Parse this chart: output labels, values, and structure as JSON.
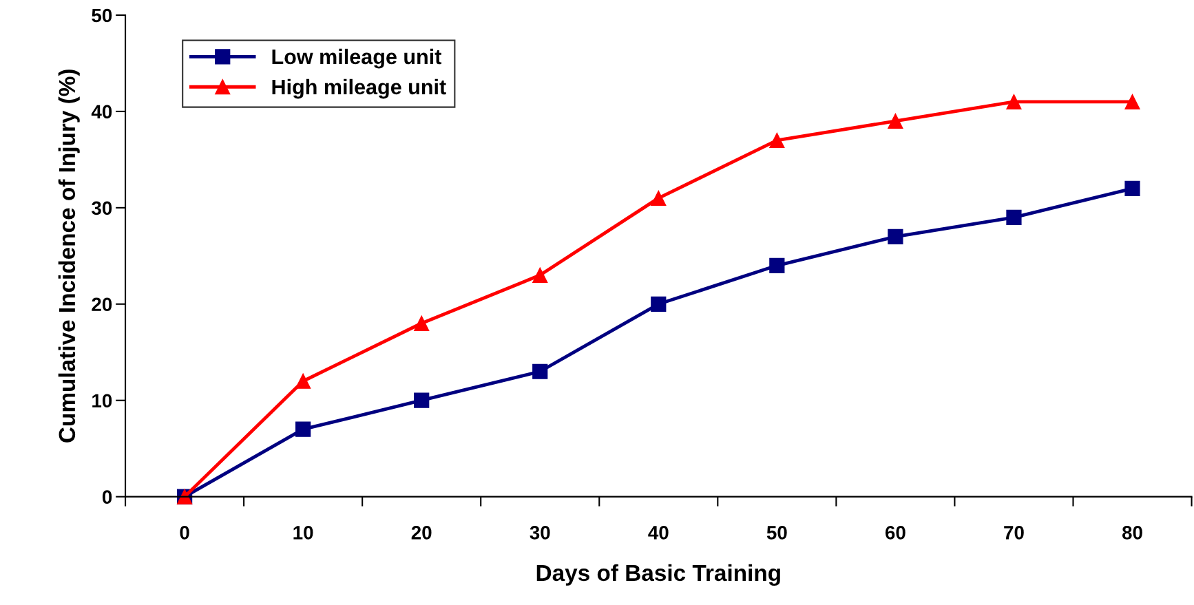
{
  "chart_data": {
    "type": "line",
    "xlabel": "Days of Basic Training",
    "ylabel": "Cumulative Incidence of Injury (%)",
    "categories": [
      "0",
      "10",
      "20",
      "30",
      "40",
      "50",
      "60",
      "70",
      "80"
    ],
    "series": [
      {
        "name": "Low mileage unit",
        "color": "#000080",
        "marker": "square",
        "values": [
          0,
          7,
          10,
          13,
          20,
          24,
          27,
          29,
          32
        ]
      },
      {
        "name": "High mileage unit",
        "color": "#ff0000",
        "marker": "triangle",
        "values": [
          0,
          12,
          18,
          23,
          31,
          37,
          39,
          41,
          41
        ]
      }
    ],
    "ylim": [
      0,
      50
    ],
    "yticks": [
      0,
      10,
      20,
      30,
      40,
      50
    ],
    "grid": false,
    "legend": "top left",
    "line_style": "solid"
  }
}
